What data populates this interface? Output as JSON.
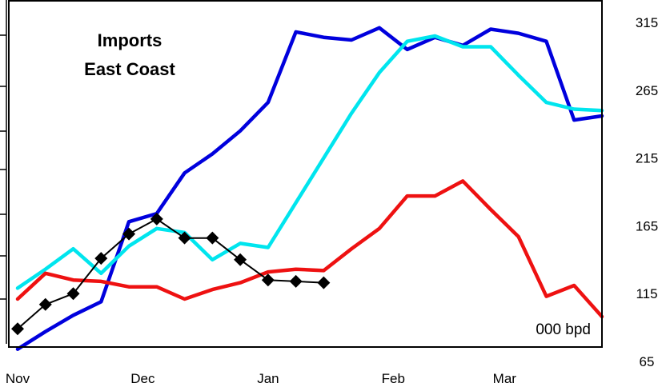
{
  "chart_data": {
    "type": "line",
    "title_lines": [
      "Imports",
      "East Coast"
    ],
    "unit_label": "000 bpd",
    "ylim": [
      65,
      315
    ],
    "y_ticks": [
      65,
      115,
      165,
      215,
      265,
      315
    ],
    "y_tick_labels": [
      "65",
      "115",
      "165",
      "215",
      "265",
      "315"
    ],
    "x_range": [
      0,
      21
    ],
    "x_ticks": [
      0,
      4.5,
      9,
      13.5,
      17.5
    ],
    "x_tick_labels": [
      "Nov",
      "Dec",
      "Jan",
      "Feb",
      "Mar"
    ],
    "grid": false,
    "legend": "none",
    "series": [
      {
        "color": "#0000dd",
        "marker": "none",
        "x": [
          0,
          1,
          2,
          3,
          4,
          5,
          6,
          7,
          8,
          9,
          10,
          11,
          12,
          13,
          14,
          15,
          16,
          17,
          18,
          19,
          20,
          21
        ],
        "values": [
          74,
          87,
          99,
          109,
          168,
          174,
          204,
          218,
          235,
          256,
          308,
          304,
          302,
          311,
          295,
          304,
          298,
          310,
          307,
          301,
          243,
          246
        ]
      },
      {
        "color": "#00e5ee",
        "marker": "none",
        "x": [
          0,
          1,
          2,
          3,
          4,
          5,
          6,
          7,
          8,
          9,
          10,
          11,
          12,
          13,
          14,
          15,
          16,
          17,
          18,
          19,
          20,
          21
        ],
        "values": [
          119,
          133,
          148,
          130,
          150,
          163,
          160,
          140,
          152,
          149,
          182,
          215,
          248,
          278,
          301,
          305,
          297,
          297,
          276,
          256,
          251,
          250
        ]
      },
      {
        "color": "#ee1111",
        "marker": "none",
        "x": [
          0,
          1,
          2,
          3,
          4,
          5,
          6,
          7,
          8,
          9,
          10,
          11,
          12,
          13,
          14,
          15,
          16,
          17,
          18,
          19,
          20,
          21
        ],
        "values": [
          111,
          130,
          125,
          124,
          120,
          120,
          111,
          118,
          123,
          131,
          133,
          132,
          148,
          163,
          187,
          187,
          198,
          177,
          157,
          113,
          121,
          98
        ]
      },
      {
        "color": "#000000",
        "marker": "diamond",
        "x": [
          0,
          1,
          2,
          3,
          4,
          5,
          6,
          7,
          8,
          9,
          10,
          11
        ],
        "values": [
          89,
          107,
          115,
          141,
          159,
          170,
          156,
          156,
          140,
          125,
          124,
          123
        ]
      }
    ]
  }
}
